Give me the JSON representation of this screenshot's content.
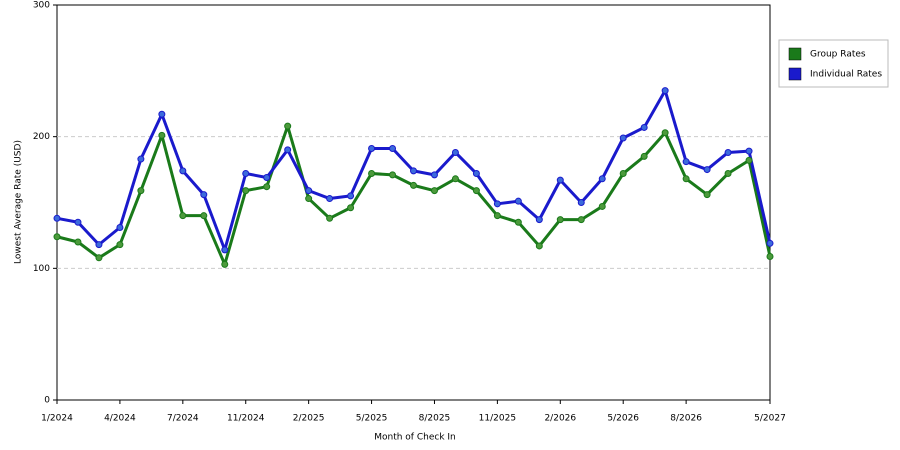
{
  "chart_data": {
    "type": "line",
    "x_label": "Month of Check In",
    "y_label": "Lowest Average Rate (USD)",
    "categories": [
      "1/2024",
      null,
      null,
      "4/2024",
      null,
      null,
      "7/2024",
      null,
      null,
      "11/2024",
      null,
      null,
      "2/2025",
      null,
      null,
      "5/2025",
      null,
      null,
      "8/2025",
      null,
      null,
      "11/2025",
      null,
      null,
      "2/2026",
      null,
      null,
      "5/2026",
      null,
      null,
      "8/2026",
      null,
      null,
      null,
      "5/2027"
    ],
    "series": [
      {
        "name": "Group Rates",
        "color": "#1a7a1a",
        "marker_color": "#4c9a3c",
        "values": [
          124,
          120,
          108,
          118,
          159,
          201,
          140,
          140,
          103,
          159,
          162,
          208,
          153,
          138,
          146,
          172,
          171,
          163,
          159,
          168,
          159,
          140,
          135,
          117,
          137,
          137,
          147,
          172,
          185,
          203,
          168,
          156,
          172,
          182,
          109
        ]
      },
      {
        "name": "Individual Rates",
        "color": "#1a1acc",
        "marker_color": "#3c6adc",
        "values": [
          138,
          135,
          118,
          131,
          183,
          217,
          174,
          156,
          114,
          172,
          169,
          190,
          159,
          153,
          155,
          191,
          191,
          174,
          171,
          188,
          172,
          149,
          151,
          137,
          167,
          150,
          168,
          199,
          207,
          235,
          181,
          175,
          188,
          189,
          119
        ]
      }
    ],
    "ylim": [
      0,
      300
    ],
    "yticks": [
      0,
      100,
      200,
      300
    ],
    "grid": true,
    "legend": "right"
  }
}
